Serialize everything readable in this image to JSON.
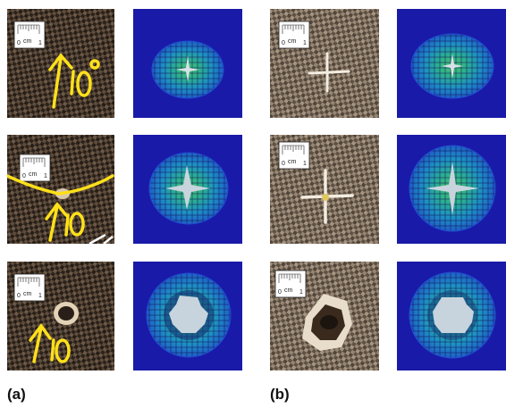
{
  "figure": {
    "groups": [
      {
        "label": "(a)",
        "rows": [
          {
            "photo": {
              "handwriting": "10°",
              "kind": "cross-crack"
            },
            "simulation": {
              "kind": "cross-damage-small"
            }
          },
          {
            "photo": {
              "handwriting": "10°",
              "kind": "small-puncture"
            },
            "simulation": {
              "kind": "cross-damage-medium"
            }
          },
          {
            "photo": {
              "handwriting": "10°",
              "kind": "hole"
            },
            "simulation": {
              "kind": "perforation"
            }
          }
        ]
      },
      {
        "label": "(b)",
        "rows": [
          {
            "photo": {
              "kind": "cross-crack"
            },
            "simulation": {
              "kind": "cross-damage-small"
            }
          },
          {
            "photo": {
              "kind": "cross-crack-larger"
            },
            "simulation": {
              "kind": "cross-damage-medium"
            }
          },
          {
            "photo": {
              "kind": "large-perforation"
            },
            "simulation": {
              "kind": "perforation"
            }
          }
        ]
      }
    ],
    "scale_bar": {
      "unit": "cm",
      "start": "0",
      "end": "1"
    },
    "colors": {
      "sim_background": "#1a1aa8",
      "sim_mesh": "#1fa0c8",
      "sim_damage": "#37c06a",
      "sim_cut": "#c7d4de",
      "carbon_dark": "#3a2e22",
      "carbon_light": "#8a7560",
      "glass_light": "#c9b8a4",
      "annotation_yellow": "#ffe01a"
    }
  }
}
